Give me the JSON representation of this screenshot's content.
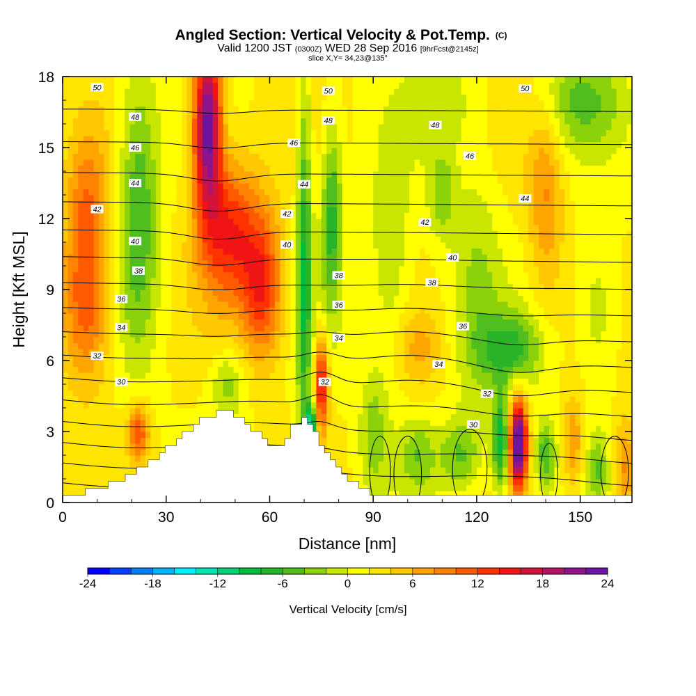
{
  "chart_data": {
    "type": "heatmap",
    "title": {
      "main": "Angled Section: Vertical Velocity & Pot.Temp.",
      "main_suffix": "(C)",
      "line2_a": "Valid 1200 JST",
      "line2_b": "(0300Z)",
      "line2_c": "WED 28 Sep 2016",
      "line2_d": "[9hrFcst@2145z]",
      "line3": "slice X,Y= 34,23@135°"
    },
    "xlabel": "Distance [nm]",
    "ylabel": "Height [Kft MSL]",
    "xlim": [
      0,
      165
    ],
    "ylim": [
      0,
      18
    ],
    "x_ticks": [
      0,
      30,
      60,
      90,
      120,
      150
    ],
    "y_ticks": [
      0,
      3,
      6,
      9,
      12,
      15,
      18
    ],
    "colorbar": {
      "label": "Vertical Velocity [cm/s]",
      "min": -24,
      "max": 24,
      "step": 2,
      "ticks": [
        -24,
        -18,
        -12,
        -6,
        0,
        6,
        12,
        18,
        24
      ],
      "colors": [
        "#0000ff",
        "#0040ff",
        "#0080ff",
        "#00b4ff",
        "#00f0ff",
        "#00e6b4",
        "#00d278",
        "#00be3c",
        "#28b428",
        "#50be1e",
        "#8cd20a",
        "#c8e600",
        "#ffff00",
        "#ffe600",
        "#ffc800",
        "#ffa500",
        "#ff8200",
        "#ff5a00",
        "#ff3200",
        "#f01414",
        "#d2143c",
        "#b41464",
        "#8c148c",
        "#6e14a0"
      ]
    },
    "terrain": [
      [
        0,
        0.3
      ],
      [
        5,
        0.4
      ],
      [
        10,
        0.6
      ],
      [
        15,
        0.9
      ],
      [
        20,
        1.3
      ],
      [
        25,
        1.8
      ],
      [
        30,
        2.3
      ],
      [
        35,
        2.9
      ],
      [
        40,
        3.5
      ],
      [
        45,
        3.9
      ],
      [
        50,
        3.7
      ],
      [
        55,
        3.0
      ],
      [
        60,
        2.4
      ],
      [
        64,
        2.6
      ],
      [
        66,
        3.4
      ],
      [
        70,
        3.5
      ],
      [
        73,
        2.8
      ],
      [
        76,
        2.0
      ],
      [
        80,
        1.3
      ],
      [
        85,
        0.7
      ],
      [
        89,
        0.35
      ],
      [
        165,
        0.35
      ]
    ],
    "w_features": [
      {
        "x": 42,
        "y": 16,
        "sx": 4,
        "sy": 3.5,
        "amp": 22
      },
      {
        "x": 48,
        "y": 11.5,
        "sx": 9,
        "sy": 3,
        "amp": 12
      },
      {
        "x": 58,
        "y": 9,
        "sx": 6,
        "sy": 3,
        "amp": 11
      },
      {
        "x": 7,
        "y": 8.5,
        "sx": 7,
        "sy": 3.5,
        "amp": 10
      },
      {
        "x": 7,
        "y": 13,
        "sx": 6,
        "sy": 3,
        "amp": 6
      },
      {
        "x": 22,
        "y": 12.5,
        "sx": 6,
        "sy": 6,
        "amp": -8
      },
      {
        "x": 22,
        "y": 3,
        "sx": 3,
        "sy": 1.2,
        "amp": 10
      },
      {
        "x": 48,
        "y": 5,
        "sx": 5,
        "sy": 1.5,
        "amp": -5
      },
      {
        "x": 70,
        "y": 10,
        "sx": 2.2,
        "sy": 8,
        "amp": -10
      },
      {
        "x": 75,
        "y": 5,
        "sx": 2,
        "sy": 2,
        "amp": 14
      },
      {
        "x": 72,
        "y": 3.3,
        "sx": 1.5,
        "sy": 0.8,
        "amp": -16
      },
      {
        "x": 78,
        "y": 12,
        "sx": 3,
        "sy": 4,
        "amp": -9
      },
      {
        "x": 90,
        "y": 3,
        "sx": 4,
        "sy": 2.5,
        "amp": -5
      },
      {
        "x": 95,
        "y": 10,
        "sx": 6,
        "sy": 5,
        "amp": -4
      },
      {
        "x": 103,
        "y": 2,
        "sx": 5,
        "sy": 1.5,
        "amp": -5
      },
      {
        "x": 115,
        "y": 2,
        "sx": 6,
        "sy": 1.5,
        "amp": -6
      },
      {
        "x": 110,
        "y": 13,
        "sx": 4,
        "sy": 2,
        "amp": -5
      },
      {
        "x": 120,
        "y": 9,
        "sx": 7,
        "sy": 6,
        "amp": -4
      },
      {
        "x": 130,
        "y": 6.5,
        "sx": 9,
        "sy": 1.5,
        "amp": -8
      },
      {
        "x": 132,
        "y": 2.5,
        "sx": 2.5,
        "sy": 1.8,
        "amp": 25
      },
      {
        "x": 127,
        "y": 2.5,
        "sx": 2.5,
        "sy": 2,
        "amp": -12
      },
      {
        "x": 140,
        "y": 2,
        "sx": 3,
        "sy": 1.5,
        "amp": -8
      },
      {
        "x": 148,
        "y": 2.5,
        "sx": 3,
        "sy": 2,
        "amp": 6
      },
      {
        "x": 155,
        "y": 1.5,
        "sx": 3,
        "sy": 1.5,
        "amp": -5
      },
      {
        "x": 163,
        "y": 1.5,
        "sx": 3,
        "sy": 2,
        "amp": 7
      },
      {
        "x": 140,
        "y": 13,
        "sx": 5,
        "sy": 4,
        "amp": 6
      },
      {
        "x": 150,
        "y": 17,
        "sx": 12,
        "sy": 2,
        "amp": -6
      },
      {
        "x": 110,
        "y": 17,
        "sx": 10,
        "sy": 2,
        "amp": -3
      },
      {
        "x": 155,
        "y": 8,
        "sx": 6,
        "sy": 3,
        "amp": -4
      },
      {
        "x": 103,
        "y": 6.5,
        "sx": 7,
        "sy": 1.5,
        "amp": 4
      }
    ],
    "theta_levels": [
      29,
      30,
      31,
      32,
      33,
      34,
      35,
      36,
      37,
      38,
      39,
      40,
      41,
      42,
      43,
      44,
      45,
      46,
      47,
      48,
      49,
      50
    ],
    "theta_labels": [
      {
        "v": "50",
        "x": 10,
        "y": 17.55
      },
      {
        "v": "50",
        "x": 77,
        "y": 17.4
      },
      {
        "v": "50",
        "x": 134,
        "y": 17.5
      },
      {
        "v": "48",
        "x": 21,
        "y": 16.3
      },
      {
        "v": "48",
        "x": 77,
        "y": 16.15
      },
      {
        "v": "48",
        "x": 108,
        "y": 15.95
      },
      {
        "v": "46",
        "x": 21,
        "y": 15
      },
      {
        "v": "46",
        "x": 67,
        "y": 15.2
      },
      {
        "v": "46",
        "x": 118,
        "y": 14.65
      },
      {
        "v": "44",
        "x": 21,
        "y": 13.5
      },
      {
        "v": "44",
        "x": 70,
        "y": 13.45
      },
      {
        "v": "44",
        "x": 134,
        "y": 12.85
      },
      {
        "v": "42",
        "x": 10,
        "y": 12.4
      },
      {
        "v": "42",
        "x": 65,
        "y": 12.2
      },
      {
        "v": "42",
        "x": 105,
        "y": 11.85
      },
      {
        "v": "40",
        "x": 21,
        "y": 11.05
      },
      {
        "v": "40",
        "x": 65,
        "y": 10.9
      },
      {
        "v": "40",
        "x": 113,
        "y": 10.35
      },
      {
        "v": "38",
        "x": 22,
        "y": 9.8
      },
      {
        "v": "38",
        "x": 80,
        "y": 9.6
      },
      {
        "v": "38",
        "x": 107,
        "y": 9.3
      },
      {
        "v": "36",
        "x": 17,
        "y": 8.6
      },
      {
        "v": "36",
        "x": 80,
        "y": 8.35
      },
      {
        "v": "36",
        "x": 116,
        "y": 7.45
      },
      {
        "v": "34",
        "x": 17,
        "y": 7.4
      },
      {
        "v": "34",
        "x": 80,
        "y": 6.95
      },
      {
        "v": "34",
        "x": 109,
        "y": 5.85
      },
      {
        "v": "32",
        "x": 10,
        "y": 6.2
      },
      {
        "v": "32",
        "x": 76,
        "y": 5.1
      },
      {
        "v": "32",
        "x": 123,
        "y": 4.6
      },
      {
        "v": "30",
        "x": 17,
        "y": 5.1
      },
      {
        "v": "30",
        "x": 119,
        "y": 3.3
      }
    ]
  }
}
